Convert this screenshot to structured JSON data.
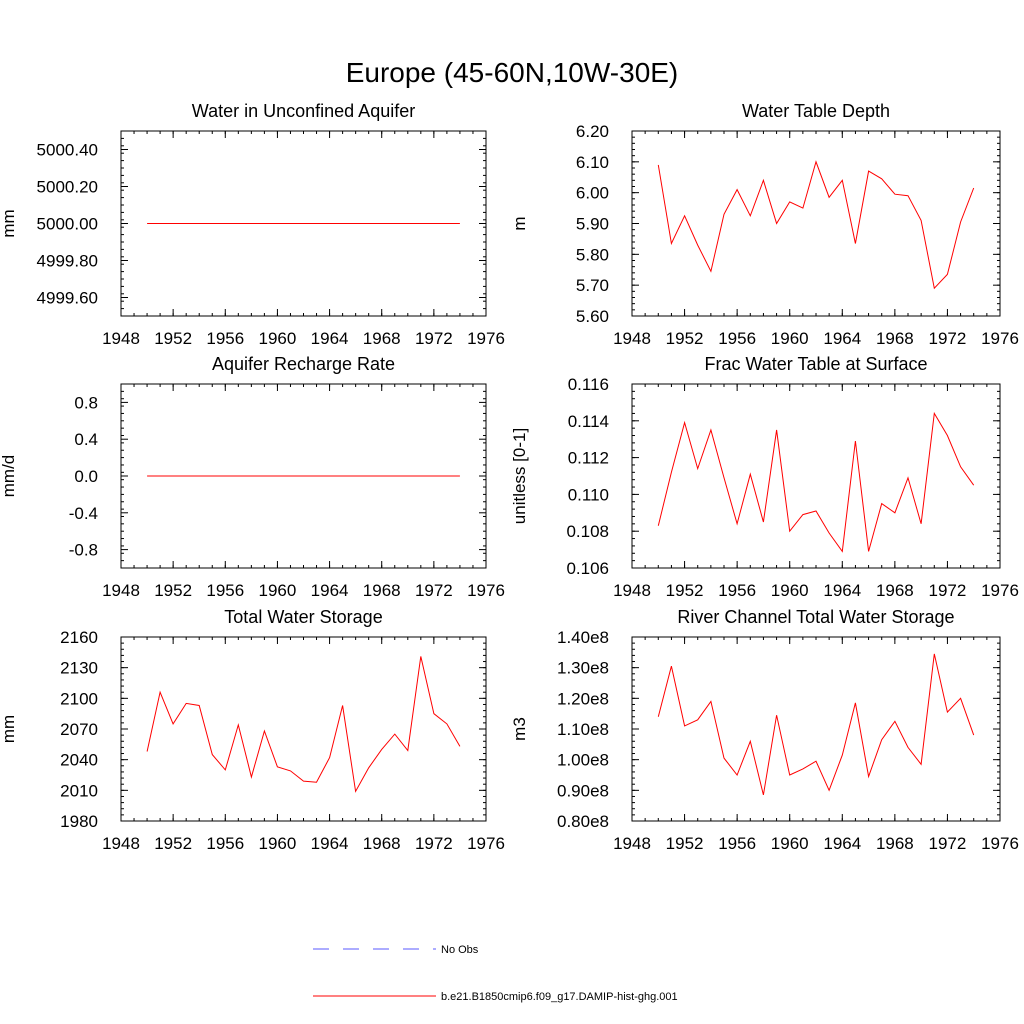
{
  "figure_title": "Europe (45-60N,10W-30E)",
  "colors": {
    "model_line": "#ff0000",
    "obs_line": "#5a5aff",
    "axis": "#000000"
  },
  "legend": {
    "obs_label": "No Obs",
    "model_label": "b.e21.B1850cmip6.f09_g17.DAMIP-hist-ghg.001"
  },
  "chart_data": [
    {
      "type": "line",
      "title": "Water in Unconfined Aquifer",
      "ylabel": "mm",
      "xlim": [
        1948,
        1976
      ],
      "ylim": [
        4999.5,
        5000.5
      ],
      "x_ticks": [
        1948,
        1952,
        1956,
        1960,
        1964,
        1968,
        1972,
        1976
      ],
      "y_ticks": [
        4999.6,
        4999.8,
        5000.0,
        5000.2,
        5000.4
      ],
      "y_tick_labels": [
        "4999.60",
        "4999.80",
        "5000.00",
        "5000.20",
        "5000.40"
      ],
      "x": [
        1950,
        1951,
        1952,
        1953,
        1954,
        1955,
        1956,
        1957,
        1958,
        1959,
        1960,
        1961,
        1962,
        1963,
        1964,
        1965,
        1966,
        1967,
        1968,
        1969,
        1970,
        1971,
        1972,
        1973,
        1974
      ],
      "series": [
        {
          "name": "b.e21.B1850cmip6.f09_g17.DAMIP-hist-ghg.001",
          "values": [
            5000,
            5000,
            5000,
            5000,
            5000,
            5000,
            5000,
            5000,
            5000,
            5000,
            5000,
            5000,
            5000,
            5000,
            5000,
            5000,
            5000,
            5000,
            5000,
            5000,
            5000,
            5000,
            5000,
            5000,
            5000
          ]
        }
      ]
    },
    {
      "type": "line",
      "title": "Water Table Depth",
      "ylabel": "m",
      "xlim": [
        1948,
        1976
      ],
      "ylim": [
        5.6,
        6.2
      ],
      "x_ticks": [
        1948,
        1952,
        1956,
        1960,
        1964,
        1968,
        1972,
        1976
      ],
      "y_ticks": [
        5.6,
        5.7,
        5.8,
        5.9,
        6.0,
        6.1,
        6.2
      ],
      "y_tick_labels": [
        "5.60",
        "5.70",
        "5.80",
        "5.90",
        "6.00",
        "6.10",
        "6.20"
      ],
      "x": [
        1950,
        1951,
        1952,
        1953,
        1954,
        1955,
        1956,
        1957,
        1958,
        1959,
        1960,
        1961,
        1962,
        1963,
        1964,
        1965,
        1966,
        1967,
        1968,
        1969,
        1970,
        1971,
        1972,
        1973,
        1974
      ],
      "series": [
        {
          "name": "b.e21.B1850cmip6.f09_g17.DAMIP-hist-ghg.001",
          "values": [
            6.09,
            5.835,
            5.925,
            5.83,
            5.745,
            5.93,
            6.01,
            5.925,
            6.04,
            5.9,
            5.97,
            5.95,
            6.1,
            5.985,
            6.04,
            5.835,
            6.07,
            6.045,
            5.995,
            5.99,
            5.91,
            5.69,
            5.735,
            5.905,
            6.015
          ]
        }
      ]
    },
    {
      "type": "line",
      "title": "Aquifer Recharge Rate",
      "ylabel": "mm/d",
      "xlim": [
        1948,
        1976
      ],
      "ylim": [
        -1.0,
        1.0
      ],
      "x_ticks": [
        1948,
        1952,
        1956,
        1960,
        1964,
        1968,
        1972,
        1976
      ],
      "y_ticks": [
        -0.8,
        -0.4,
        0.0,
        0.4,
        0.8
      ],
      "y_tick_labels": [
        "-0.8",
        "-0.4",
        "0.0",
        "0.4",
        "0.8"
      ],
      "x": [
        1950,
        1951,
        1952,
        1953,
        1954,
        1955,
        1956,
        1957,
        1958,
        1959,
        1960,
        1961,
        1962,
        1963,
        1964,
        1965,
        1966,
        1967,
        1968,
        1969,
        1970,
        1971,
        1972,
        1973,
        1974
      ],
      "series": [
        {
          "name": "b.e21.B1850cmip6.f09_g17.DAMIP-hist-ghg.001",
          "values": [
            0,
            0,
            0,
            0,
            0,
            0,
            0,
            0,
            0,
            0,
            0,
            0,
            0,
            0,
            0,
            0,
            0,
            0,
            0,
            0,
            0,
            0,
            0,
            0,
            0
          ]
        }
      ]
    },
    {
      "type": "line",
      "title": "Frac Water Table at Surface",
      "ylabel": "unitless [0-1]",
      "xlim": [
        1948,
        1976
      ],
      "ylim": [
        0.106,
        0.116
      ],
      "x_ticks": [
        1948,
        1952,
        1956,
        1960,
        1964,
        1968,
        1972,
        1976
      ],
      "y_ticks": [
        0.106,
        0.108,
        0.11,
        0.112,
        0.114,
        0.116
      ],
      "y_tick_labels": [
        "0.106",
        "0.108",
        "0.110",
        "0.112",
        "0.114",
        "0.116"
      ],
      "x": [
        1950,
        1951,
        1952,
        1953,
        1954,
        1955,
        1956,
        1957,
        1958,
        1959,
        1960,
        1961,
        1962,
        1963,
        1964,
        1965,
        1966,
        1967,
        1968,
        1969,
        1970,
        1971,
        1972,
        1973,
        1974
      ],
      "series": [
        {
          "name": "b.e21.B1850cmip6.f09_g17.DAMIP-hist-ghg.001",
          "values": [
            0.1083,
            0.1112,
            0.1139,
            0.1114,
            0.1135,
            0.1109,
            0.1084,
            0.1111,
            0.1085,
            0.1135,
            0.108,
            0.1089,
            0.1091,
            0.1079,
            0.1069,
            0.1129,
            0.1069,
            0.1095,
            0.109,
            0.1109,
            0.1084,
            0.1144,
            0.1132,
            0.1115,
            0.1105
          ]
        }
      ]
    },
    {
      "type": "line",
      "title": "Total Water Storage",
      "ylabel": "mm",
      "xlim": [
        1948,
        1976
      ],
      "ylim": [
        1980,
        2160
      ],
      "x_ticks": [
        1948,
        1952,
        1956,
        1960,
        1964,
        1968,
        1972,
        1976
      ],
      "y_ticks": [
        1980,
        2010,
        2040,
        2070,
        2100,
        2130,
        2160
      ],
      "y_tick_labels": [
        "1980",
        "2010",
        "2040",
        "2070",
        "2100",
        "2130",
        "2160"
      ],
      "x": [
        1950,
        1951,
        1952,
        1953,
        1954,
        1955,
        1956,
        1957,
        1958,
        1959,
        1960,
        1961,
        1962,
        1963,
        1964,
        1965,
        1966,
        1967,
        1968,
        1969,
        1970,
        1971,
        1972,
        1973,
        1974
      ],
      "series": [
        {
          "name": "b.e21.B1850cmip6.f09_g17.DAMIP-hist-ghg.001",
          "values": [
            2048,
            2106,
            2075,
            2095,
            2093,
            2045,
            2030,
            2074,
            2023,
            2068,
            2033,
            2029,
            2019,
            2018,
            2042,
            2093,
            2009,
            2032,
            2050,
            2065,
            2049,
            2141,
            2085,
            2075,
            2053
          ]
        }
      ]
    },
    {
      "type": "line",
      "title": "River Channel Total Water Storage",
      "ylabel": "m3",
      "xlim": [
        1948,
        1976
      ],
      "ylim": [
        0.8,
        1.4
      ],
      "x_ticks": [
        1948,
        1952,
        1956,
        1960,
        1964,
        1968,
        1972,
        1976
      ],
      "y_ticks": [
        0.8,
        0.9,
        1.0,
        1.1,
        1.2,
        1.3,
        1.4
      ],
      "y_tick_labels": [
        "0.80e8",
        "0.90e8",
        "1.00e8",
        "1.10e8",
        "1.20e8",
        "1.30e8",
        "1.40e8"
      ],
      "y_scale_factor": "e8",
      "x": [
        1950,
        1951,
        1952,
        1953,
        1954,
        1955,
        1956,
        1957,
        1958,
        1959,
        1960,
        1961,
        1962,
        1963,
        1964,
        1965,
        1966,
        1967,
        1968,
        1969,
        1970,
        1971,
        1972,
        1973,
        1974
      ],
      "series": [
        {
          "name": "b.e21.B1850cmip6.f09_g17.DAMIP-hist-ghg.001",
          "values": [
            1.14,
            1.305,
            1.11,
            1.13,
            1.19,
            1.005,
            0.95,
            1.06,
            0.885,
            1.145,
            0.95,
            0.97,
            0.995,
            0.9,
            1.015,
            1.185,
            0.945,
            1.065,
            1.125,
            1.04,
            0.985,
            1.345,
            1.155,
            1.2,
            1.08
          ]
        }
      ]
    }
  ]
}
